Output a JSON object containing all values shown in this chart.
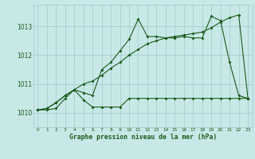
{
  "title": "Graphe pression niveau de la mer (hPa)",
  "bg_color": "#c8e8e8",
  "grid_color": "#a0c8c8",
  "line_color": "#1a5c1a",
  "label_color": "#1a5c1a",
  "x_labels": [
    "0",
    "1",
    "2",
    "3",
    "4",
    "5",
    "6",
    "7",
    "8",
    "9",
    "10",
    "11",
    "12",
    "13",
    "14",
    "15",
    "16",
    "17",
    "18",
    "19",
    "20",
    "21",
    "22",
    "23"
  ],
  "ylim": [
    1009.5,
    1013.75
  ],
  "yticks": [
    1010,
    1011,
    1012,
    1013
  ],
  "series1": [
    1010.1,
    1010.1,
    1010.15,
    1010.5,
    1010.8,
    1010.7,
    1010.6,
    1011.5,
    1011.75,
    1012.15,
    1012.55,
    1013.25,
    1012.65,
    1012.65,
    1012.6,
    1012.6,
    1012.65,
    1012.6,
    1012.6,
    1013.35,
    1013.2,
    1011.75,
    1010.6,
    1010.5
  ],
  "series2": [
    1010.1,
    1010.15,
    1010.35,
    1010.6,
    1010.8,
    1010.45,
    1010.2,
    1010.2,
    1010.2,
    1010.2,
    1010.5,
    1010.5,
    1010.5,
    1010.5,
    1010.5,
    1010.5,
    1010.5,
    1010.5,
    1010.5,
    1010.5,
    1010.5,
    1010.5,
    1010.5,
    1010.5
  ],
  "series3": [
    1010.1,
    1010.15,
    1010.35,
    1010.6,
    1010.8,
    1011.0,
    1011.1,
    1011.3,
    1011.55,
    1011.75,
    1012.0,
    1012.2,
    1012.4,
    1012.5,
    1012.6,
    1012.65,
    1012.7,
    1012.75,
    1012.8,
    1012.95,
    1013.15,
    1013.3,
    1013.4,
    1010.5
  ]
}
